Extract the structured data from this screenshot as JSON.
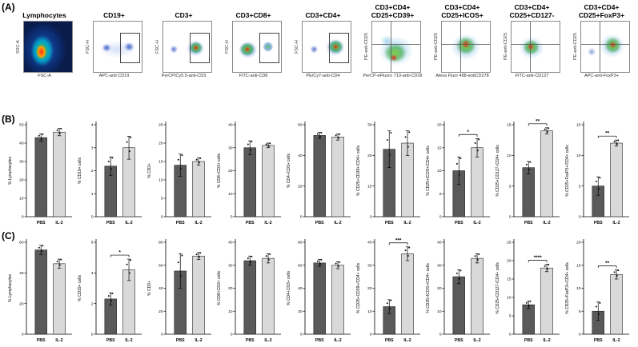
{
  "figure": {
    "panel_a_label": "(A)",
    "panel_b_label": "(B)",
    "panel_c_label": "(C)"
  },
  "colors": {
    "pbs_bar": "#5a5a5a",
    "il2_bar": "#d9d9d9",
    "axis": "#000000"
  },
  "chart_data": [
    {
      "type": "scatter",
      "subtype": "flow-cytometry-density",
      "title": "Lymphocytes",
      "xlabel": "FSC-A",
      "ylabel": "SSC-A"
    },
    {
      "type": "scatter",
      "subtype": "flow-cytometry-density",
      "title": "CD19+",
      "xlabel": "APC-anti CD19",
      "ylabel": "FSC-H"
    },
    {
      "type": "scatter",
      "subtype": "flow-cytometry-density",
      "title": "CD3+",
      "xlabel": "PerCP/Cy5.5-anti-CD3",
      "ylabel": "FSC-H"
    },
    {
      "type": "scatter",
      "subtype": "flow-cytometry-density",
      "title": "CD3+CD8+",
      "xlabel": "FITC-anti-CD8",
      "ylabel": "FSC-H"
    },
    {
      "type": "scatter",
      "subtype": "flow-cytometry-density",
      "title": "CD3+CD4+",
      "xlabel": "PE/Cy7-anti-CD4",
      "ylabel": "FSC-H"
    },
    {
      "type": "scatter",
      "subtype": "flow-cytometry-density",
      "title": "CD3+CD4+ CD25+CD39+",
      "xlabel": "PerCP-eFluoro 710-anti-CD39",
      "ylabel": "PE-anti-CD25"
    },
    {
      "type": "scatter",
      "subtype": "flow-cytometry-density",
      "title": "CD3+CD4+ CD25+ICOS+",
      "xlabel": "Alexa Fluor 488-antiCD278",
      "ylabel": "PE-anti-CD25"
    },
    {
      "type": "scatter",
      "subtype": "flow-cytometry-density",
      "title": "CD3+CD4+ CD25+CD127-",
      "xlabel": "FITC-anti-CD127",
      "ylabel": "PE-anti-CD25"
    },
    {
      "type": "scatter",
      "subtype": "flow-cytometry-density",
      "title": "CD3+CD4+ CD25+FoxP3+",
      "xlabel": "APC-anti-FoxP3+",
      "ylabel": "PE-anti-CD25"
    },
    {
      "type": "bar",
      "panel": "B",
      "ylabel": "% Lymphocytes",
      "categories": [
        "PBS",
        "IL-2"
      ],
      "values": [
        43,
        46
      ],
      "errors": [
        2,
        2
      ],
      "ylim": [
        0,
        50
      ],
      "yticks": [
        0,
        10,
        20,
        30,
        40,
        50
      ],
      "significance": null,
      "grid": false,
      "legend_position": "none"
    },
    {
      "type": "bar",
      "panel": "B",
      "ylabel": "% CD19+ cells",
      "categories": [
        "PBS",
        "IL-2"
      ],
      "values": [
        2.2,
        3.0
      ],
      "errors": [
        0.4,
        0.5
      ],
      "ylim": [
        0,
        4
      ],
      "yticks": [
        0,
        1,
        2,
        3,
        4
      ],
      "significance": null,
      "grid": false,
      "legend_position": "none"
    },
    {
      "type": "bar",
      "panel": "B",
      "ylabel": "% CD3+",
      "categories": [
        "PBS",
        "IL-2"
      ],
      "values": [
        14,
        15
      ],
      "errors": [
        3,
        1
      ],
      "ylim": [
        0,
        25
      ],
      "yticks": [
        0,
        5,
        10,
        15,
        20,
        25
      ],
      "significance": null,
      "grid": false,
      "legend_position": "none"
    },
    {
      "type": "bar",
      "panel": "B",
      "ylabel": "% CD8+CD3+ cells",
      "categories": [
        "PBS",
        "IL-2"
      ],
      "values": [
        30,
        31
      ],
      "errors": [
        3,
        1
      ],
      "ylim": [
        0,
        40
      ],
      "yticks": [
        0,
        10,
        20,
        30,
        40
      ],
      "significance": null,
      "grid": false,
      "legend_position": "none"
    },
    {
      "type": "bar",
      "panel": "B",
      "ylabel": "% CD4+CD3+ cells",
      "categories": [
        "PBS",
        "IL-2"
      ],
      "values": [
        53,
        52
      ],
      "errors": [
        2,
        2
      ],
      "ylim": [
        0,
        60
      ],
      "yticks": [
        0,
        20,
        40,
        60
      ],
      "significance": null,
      "grid": false,
      "legend_position": "none"
    },
    {
      "type": "bar",
      "panel": "B",
      "ylabel": "% CD25+CD39+/CD4+ cells",
      "categories": [
        "PBS",
        "IL-2"
      ],
      "values": [
        22,
        24
      ],
      "errors": [
        6,
        4
      ],
      "ylim": [
        0,
        30
      ],
      "yticks": [
        0,
        10,
        20,
        30
      ],
      "significance": null,
      "grid": false,
      "legend_position": "none"
    },
    {
      "type": "bar",
      "panel": "B",
      "ylabel": "% CD25+ICOS+/CD4+ cells",
      "categories": [
        "PBS",
        "IL-2"
      ],
      "values": [
        10,
        15
      ],
      "errors": [
        3,
        2
      ],
      "ylim": [
        0,
        20
      ],
      "yticks": [
        0,
        5,
        10,
        15,
        20
      ],
      "significance": "*",
      "grid": false,
      "legend_position": "none"
    },
    {
      "type": "bar",
      "panel": "B",
      "ylabel": "% CD25+CD127-/CD4+ cells",
      "categories": [
        "PBS",
        "IL-2"
      ],
      "values": [
        8,
        14
      ],
      "errors": [
        1,
        0.5
      ],
      "ylim": [
        0,
        15
      ],
      "yticks": [
        0,
        5,
        10,
        15
      ],
      "significance": "**",
      "grid": false,
      "legend_position": "none"
    },
    {
      "type": "bar",
      "panel": "B",
      "ylabel": "% CD25+FoxP3+/CD4+ cells",
      "categories": [
        "PBS",
        "IL-2"
      ],
      "values": [
        5,
        12
      ],
      "errors": [
        1.5,
        0.5
      ],
      "ylim": [
        0,
        15
      ],
      "yticks": [
        0,
        5,
        10,
        15
      ],
      "significance": "**",
      "grid": false,
      "legend_position": "none"
    },
    {
      "type": "bar",
      "panel": "C",
      "ylabel": "% Lymphocytes",
      "categories": [
        "PBS",
        "IL-2"
      ],
      "values": [
        55,
        46
      ],
      "errors": [
        3,
        3
      ],
      "ylim": [
        0,
        60
      ],
      "yticks": [
        0,
        20,
        40,
        60
      ],
      "significance": null,
      "grid": false,
      "legend_position": "none"
    },
    {
      "type": "bar",
      "panel": "C",
      "ylabel": "% CD19+ cells",
      "categories": [
        "PBS",
        "IL-2"
      ],
      "values": [
        2.3,
        4.2
      ],
      "errors": [
        0.4,
        0.7
      ],
      "ylim": [
        0,
        6
      ],
      "yticks": [
        0,
        2,
        4,
        6
      ],
      "significance": "*",
      "grid": false,
      "legend_position": "none"
    },
    {
      "type": "bar",
      "panel": "C",
      "ylabel": "% CD3+",
      "categories": [
        "PBS",
        "IL-2"
      ],
      "values": [
        55,
        68
      ],
      "errors": [
        15,
        3
      ],
      "ylim": [
        0,
        80
      ],
      "yticks": [
        0,
        20,
        40,
        60,
        80
      ],
      "significance": null,
      "grid": false,
      "legend_position": "none"
    },
    {
      "type": "bar",
      "panel": "C",
      "ylabel": "% CD8+CD3+ cells",
      "categories": [
        "PBS",
        "IL-2"
      ],
      "values": [
        32,
        33
      ],
      "errors": [
        2,
        2
      ],
      "ylim": [
        0,
        40
      ],
      "yticks": [
        0,
        10,
        20,
        30,
        40
      ],
      "significance": null,
      "grid": false,
      "legend_position": "none"
    },
    {
      "type": "bar",
      "panel": "C",
      "ylabel": "% CD4+CD3+ cells",
      "categories": [
        "PBS",
        "IL-2"
      ],
      "values": [
        62,
        60
      ],
      "errors": [
        3,
        3
      ],
      "ylim": [
        0,
        80
      ],
      "yticks": [
        0,
        20,
        40,
        60,
        80
      ],
      "significance": null,
      "grid": false,
      "legend_position": "none"
    },
    {
      "type": "bar",
      "panel": "C",
      "ylabel": "% CD25+CD39+/CD4+ cells",
      "categories": [
        "PBS",
        "IL-2"
      ],
      "values": [
        12,
        35
      ],
      "errors": [
        3,
        3
      ],
      "ylim": [
        0,
        40
      ],
      "yticks": [
        0,
        10,
        20,
        30,
        40
      ],
      "significance": "***",
      "grid": false,
      "legend_position": "none"
    },
    {
      "type": "bar",
      "panel": "C",
      "ylabel": "% CD25+ICOS+/CD4+ cells",
      "categories": [
        "PBS",
        "IL-2"
      ],
      "values": [
        25,
        33
      ],
      "errors": [
        3,
        2
      ],
      "ylim": [
        0,
        40
      ],
      "yticks": [
        0,
        10,
        20,
        30,
        40
      ],
      "significance": null,
      "grid": false,
      "legend_position": "none"
    },
    {
      "type": "bar",
      "panel": "C",
      "ylabel": "% CD25+CD127-/CD4+ cells",
      "categories": [
        "PBS",
        "IL-2"
      ],
      "values": [
        8,
        18
      ],
      "errors": [
        1,
        1
      ],
      "ylim": [
        0,
        25
      ],
      "yticks": [
        0,
        5,
        10,
        15,
        20,
        25
      ],
      "significance": "****",
      "grid": false,
      "legend_position": "none"
    },
    {
      "type": "bar",
      "panel": "C",
      "ylabel": "% CD25+FoxP3+/CD4+ cells",
      "categories": [
        "PBS",
        "IL-2"
      ],
      "values": [
        5,
        13
      ],
      "errors": [
        2,
        1
      ],
      "ylim": [
        0,
        20
      ],
      "yticks": [
        0,
        5,
        10,
        15,
        20
      ],
      "significance": "**",
      "grid": false,
      "legend_position": "none"
    }
  ]
}
